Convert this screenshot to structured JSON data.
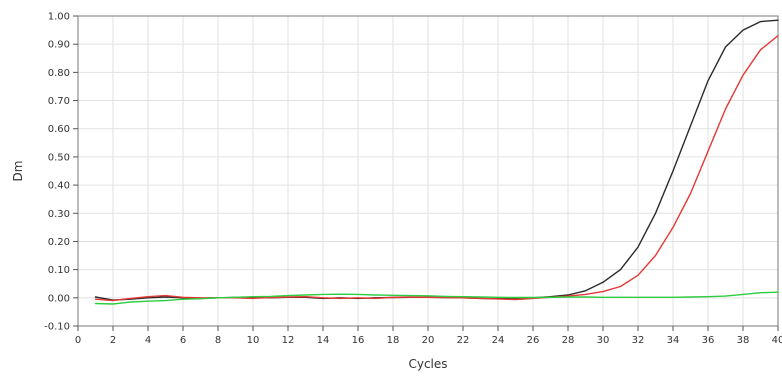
{
  "chart_data": {
    "type": "line",
    "xlabel": "Cycles",
    "ylabel": "Dm",
    "xlim": [
      0,
      40
    ],
    "ylim": [
      -0.1,
      1.0
    ],
    "grid": true,
    "x_ticks": [
      0,
      2,
      4,
      6,
      8,
      10,
      12,
      14,
      16,
      18,
      20,
      22,
      24,
      26,
      28,
      30,
      32,
      34,
      36,
      38,
      40
    ],
    "x_tick_labels": [
      "0",
      "2",
      "4",
      "6",
      "8",
      "10",
      "12",
      "14",
      "16",
      "18",
      "20",
      "22",
      "24",
      "26",
      "28",
      "30",
      "32",
      "34",
      "36",
      "38",
      "40"
    ],
    "y_ticks": [
      -0.1,
      0.0,
      0.1,
      0.2,
      0.3,
      0.4,
      0.5,
      0.6,
      0.7,
      0.8,
      0.9,
      1.0
    ],
    "y_tick_labels": [
      "-0.10",
      "0.00",
      "0.10",
      "0.20",
      "0.30",
      "0.40",
      "0.50",
      "0.60",
      "0.70",
      "0.80",
      "0.90",
      "1.00"
    ],
    "x": [
      1,
      2,
      3,
      4,
      5,
      6,
      7,
      8,
      9,
      10,
      11,
      12,
      13,
      14,
      15,
      16,
      17,
      18,
      19,
      20,
      21,
      22,
      23,
      24,
      25,
      26,
      27,
      28,
      29,
      30,
      31,
      32,
      33,
      34,
      35,
      36,
      37,
      38,
      39,
      40
    ],
    "series": [
      {
        "color": "#2b2b2b",
        "values": [
          0.003,
          -0.008,
          -0.005,
          0.0,
          0.003,
          0.0,
          -0.002,
          0.0,
          0.001,
          0.0,
          0.0,
          0.002,
          0.002,
          -0.002,
          0.0,
          -0.002,
          0.0,
          0.001,
          0.002,
          0.002,
          0.001,
          0.0,
          -0.002,
          -0.003,
          -0.003,
          0.0,
          0.004,
          0.01,
          0.025,
          0.055,
          0.1,
          0.18,
          0.3,
          0.45,
          0.61,
          0.77,
          0.89,
          0.95,
          0.98,
          0.985
        ]
      },
      {
        "color": "#e53935",
        "values": [
          -0.005,
          -0.01,
          -0.002,
          0.004,
          0.008,
          0.002,
          0.0,
          0.0,
          0.0,
          -0.002,
          0.001,
          0.003,
          0.004,
          0.0,
          -0.002,
          0.0,
          -0.002,
          0.002,
          0.003,
          0.002,
          0.001,
          0.0,
          -0.002,
          -0.004,
          -0.006,
          -0.002,
          0.002,
          0.006,
          0.012,
          0.022,
          0.04,
          0.08,
          0.15,
          0.25,
          0.37,
          0.52,
          0.67,
          0.79,
          0.88,
          0.93
        ]
      },
      {
        "color": "#2ecc40",
        "values": [
          -0.02,
          -0.022,
          -0.015,
          -0.012,
          -0.01,
          -0.005,
          -0.003,
          0.0,
          0.002,
          0.004,
          0.005,
          0.008,
          0.01,
          0.012,
          0.013,
          0.012,
          0.01,
          0.009,
          0.008,
          0.007,
          0.005,
          0.004,
          0.003,
          0.002,
          0.001,
          0.001,
          0.002,
          0.003,
          0.003,
          0.002,
          0.002,
          0.002,
          0.002,
          0.002,
          0.003,
          0.004,
          0.006,
          0.012,
          0.018,
          0.02
        ]
      }
    ]
  }
}
